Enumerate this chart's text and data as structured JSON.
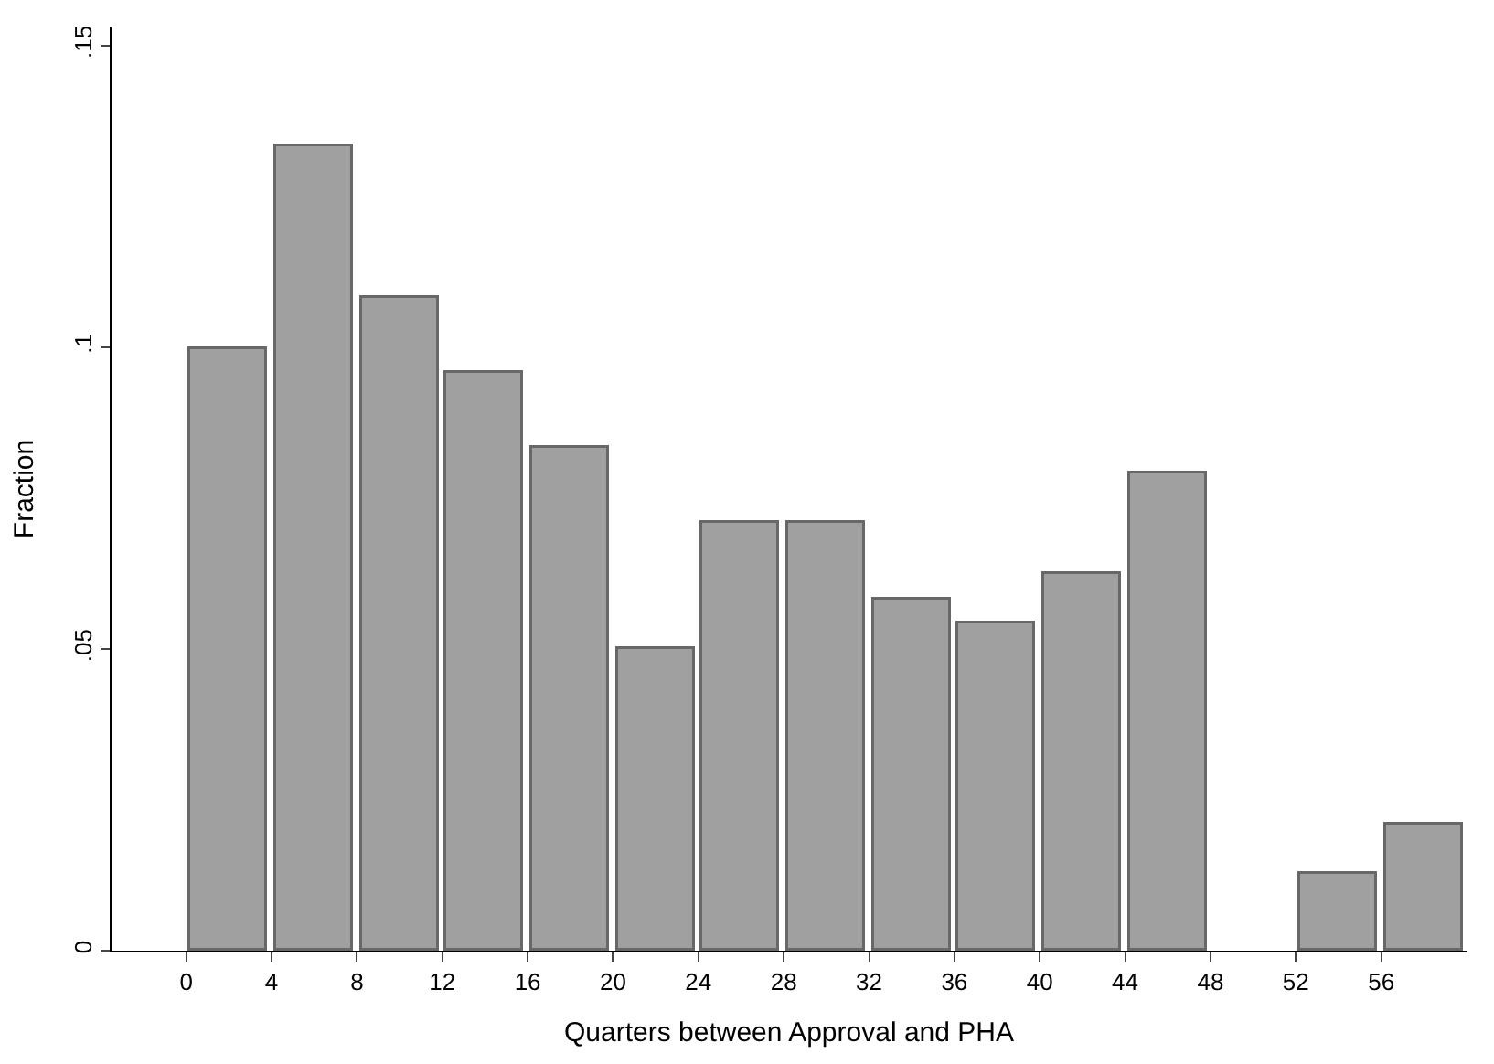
{
  "chart_data": {
    "type": "histogram",
    "xlabel": "Quarters between Approval and PHA",
    "ylabel": "Fraction",
    "bins": [
      0,
      4,
      8,
      12,
      16,
      20,
      24,
      28,
      32,
      36,
      40,
      44,
      48,
      52,
      56,
      60
    ],
    "values": [
      0.0998,
      0.1332,
      0.1081,
      0.0956,
      0.0832,
      0.05,
      0.0709,
      0.0709,
      0.0582,
      0.0542,
      0.0624,
      0.079,
      0,
      0.0127,
      0.0208
    ],
    "color": "#a0a0a0",
    "xlim": [
      -3.5,
      60
    ],
    "xticks": [
      0,
      4,
      8,
      12,
      16,
      20,
      24,
      28,
      32,
      36,
      40,
      44,
      48,
      52,
      56
    ],
    "ylim": [
      0,
      0.153
    ],
    "yticks": [
      {
        "value": 0,
        "label": "0"
      },
      {
        "value": 0.05,
        "label": ".05"
      },
      {
        "value": 0.1,
        "label": ".1"
      },
      {
        "value": 0.15,
        "label": ".15"
      }
    ],
    "tick_labels": "xy"
  }
}
